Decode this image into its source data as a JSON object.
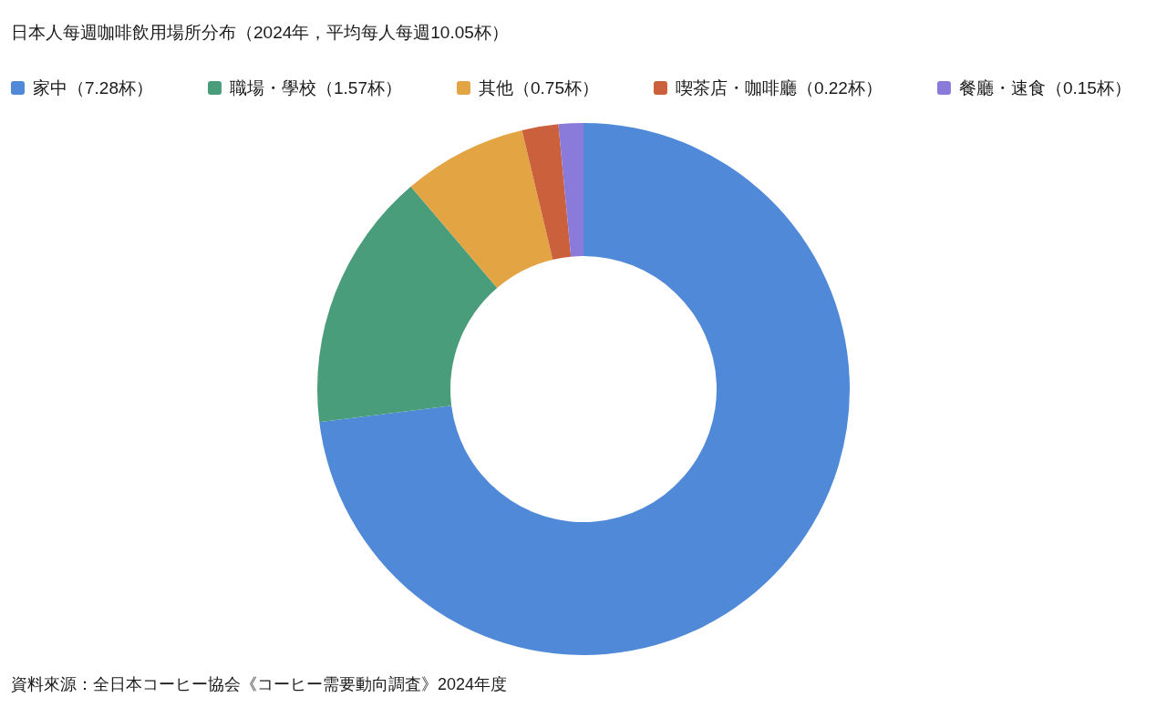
{
  "chart_data": {
    "type": "donut",
    "title": "日本人每週咖啡飲用場所分布（2024年，平均每人每週10.05杯）",
    "categories": [
      "家中（7.28杯）",
      "職場・學校（1.57杯）",
      "其他（0.75杯）",
      "喫茶店・咖啡廳（0.22杯）",
      "餐廳・速食（0.15杯）"
    ],
    "values": [
      7.28,
      1.57,
      0.75,
      0.22,
      0.15
    ],
    "colors": [
      "#4f89d8",
      "#4a9d7a",
      "#e3a443",
      "#cb603c",
      "#8a7bdb"
    ],
    "legend": "top",
    "annotations": [
      "資料來源：全日本コーヒー協会《コーヒー需要動向調査》2024年度"
    ]
  }
}
